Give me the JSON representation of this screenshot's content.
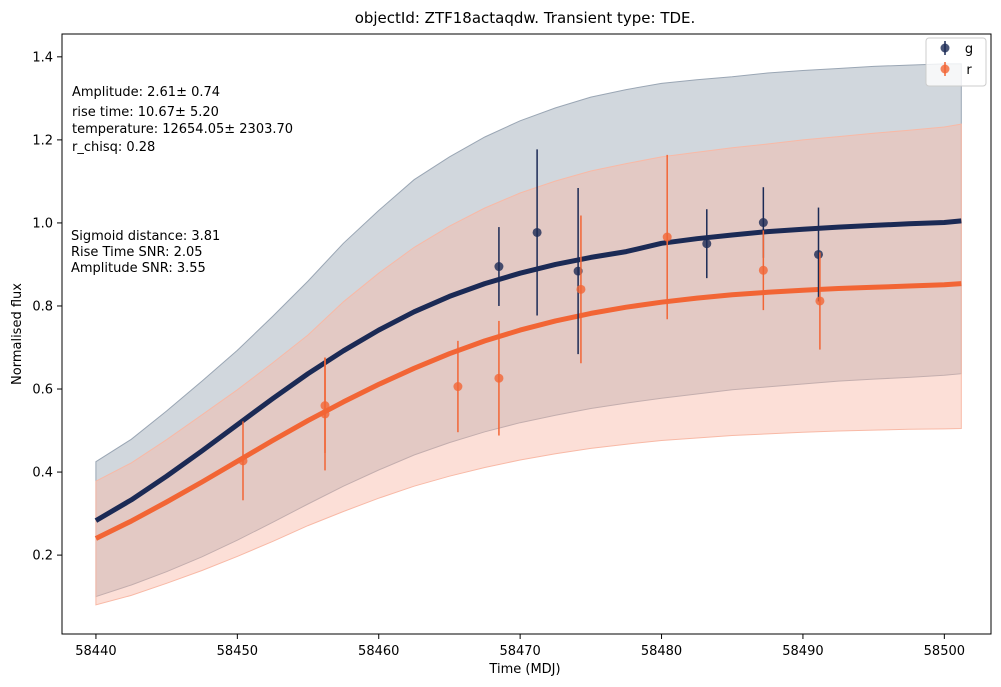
{
  "chart_data": {
    "type": "scatter",
    "title": "objectId: ZTF18actaqdw. Transient type: TDE.",
    "xlabel": "Time (MDJ)",
    "ylabel": "Normalised flux",
    "xlim": [
      58437.6,
      58503.3
    ],
    "ylim": [
      0.01,
      1.455
    ],
    "xticks": [
      58440,
      58450,
      58460,
      58470,
      58480,
      58490,
      58500
    ],
    "yticks": [
      0.2,
      0.4,
      0.6,
      0.8,
      1.0,
      1.2,
      1.4
    ],
    "xtick_labels": [
      "58440",
      "58450",
      "58460",
      "58470",
      "58480",
      "58490",
      "58500"
    ],
    "ytick_labels": [
      "0.2",
      "0.4",
      "0.6",
      "0.8",
      "1.0",
      "1.2",
      "1.4"
    ],
    "grid": false,
    "legend_position": "top-right",
    "annotations_top": [
      "Amplitude: 2.61± 0.74",
      "rise time: 10.67± 5.20",
      "temperature: 12654.05± 2303.70",
      "r_chisq: 0.28"
    ],
    "annotations_mid": [
      "Sigmoid distance: 3.81",
      "Rise Time SNR: 2.05",
      "Amplitude SNR: 3.55"
    ],
    "series": [
      {
        "name": "g",
        "color": "#1b2a55",
        "band_color": "#9aa6b4",
        "x": [
          58468.5,
          58471.2,
          58474.1,
          58483.2,
          58487.2,
          58491.1
        ],
        "y": [
          0.895,
          0.977,
          0.884,
          0.95,
          1.001,
          0.924
        ],
        "yerr": [
          0.095,
          0.2,
          0.2,
          0.083,
          0.085,
          0.113
        ],
        "model_x": [
          58440,
          58442.5,
          58445,
          58447.5,
          58450,
          58452.5,
          58455,
          58457.5,
          58460,
          58462.5,
          58465,
          58467.5,
          58470,
          58472.5,
          58475,
          58477.5,
          58480,
          58482.5,
          58485,
          58487.5,
          58490,
          58492.5,
          58495,
          58497.5,
          58500,
          58501.2
        ],
        "model_y": [
          0.283,
          0.333,
          0.39,
          0.451,
          0.514,
          0.577,
          0.637,
          0.692,
          0.742,
          0.786,
          0.823,
          0.854,
          0.879,
          0.9,
          0.917,
          0.931,
          0.951,
          0.962,
          0.971,
          0.979,
          0.985,
          0.99,
          0.994,
          0.998,
          1.001,
          1.005
        ],
        "band_upper": [
          0.425,
          0.479,
          0.547,
          0.619,
          0.693,
          0.775,
          0.86,
          0.951,
          1.03,
          1.104,
          1.159,
          1.207,
          1.246,
          1.277,
          1.303,
          1.321,
          1.336,
          1.345,
          1.352,
          1.361,
          1.367,
          1.372,
          1.377,
          1.38,
          1.383,
          1.383
        ],
        "band_lower": [
          0.1,
          0.128,
          0.16,
          0.196,
          0.236,
          0.279,
          0.323,
          0.366,
          0.405,
          0.441,
          0.471,
          0.497,
          0.519,
          0.537,
          0.553,
          0.566,
          0.578,
          0.588,
          0.598,
          0.605,
          0.612,
          0.619,
          0.624,
          0.628,
          0.633,
          0.637
        ]
      },
      {
        "name": "r",
        "color": "#f26535",
        "band_color": "#f8b9a6",
        "x": [
          58450.4,
          58456.2,
          58456.2,
          58465.6,
          58468.5,
          58474.3,
          58480.4,
          58487.2,
          58491.2
        ],
        "y": [
          0.427,
          0.54,
          0.56,
          0.606,
          0.626,
          0.84,
          0.966,
          0.886,
          0.812
        ],
        "yerr": [
          0.095,
          0.136,
          0.114,
          0.11,
          0.138,
          0.178,
          0.198,
          0.096,
          0.117
        ],
        "model_x": [
          58440,
          58442.5,
          58445,
          58447.5,
          58450,
          58452.5,
          58455,
          58457.5,
          58460,
          58462.5,
          58465,
          58467.5,
          58470,
          58472.5,
          58475,
          58477.5,
          58480,
          58482.5,
          58485,
          58487.5,
          58490,
          58492.5,
          58495,
          58497.5,
          58500,
          58501.2
        ],
        "model_y": [
          0.24,
          0.282,
          0.328,
          0.376,
          0.426,
          0.476,
          0.524,
          0.569,
          0.611,
          0.65,
          0.685,
          0.716,
          0.742,
          0.764,
          0.782,
          0.797,
          0.809,
          0.819,
          0.827,
          0.833,
          0.838,
          0.842,
          0.845,
          0.848,
          0.851,
          0.854
        ],
        "band_upper": [
          0.378,
          0.422,
          0.478,
          0.538,
          0.598,
          0.663,
          0.73,
          0.81,
          0.879,
          0.941,
          0.992,
          1.036,
          1.072,
          1.101,
          1.125,
          1.143,
          1.159,
          1.17,
          1.181,
          1.19,
          1.2,
          1.208,
          1.216,
          1.223,
          1.231,
          1.238
        ],
        "band_lower": [
          0.08,
          0.103,
          0.132,
          0.163,
          0.197,
          0.233,
          0.271,
          0.305,
          0.337,
          0.366,
          0.39,
          0.411,
          0.429,
          0.444,
          0.457,
          0.467,
          0.476,
          0.482,
          0.488,
          0.492,
          0.496,
          0.499,
          0.501,
          0.503,
          0.504,
          0.505
        ]
      }
    ]
  }
}
